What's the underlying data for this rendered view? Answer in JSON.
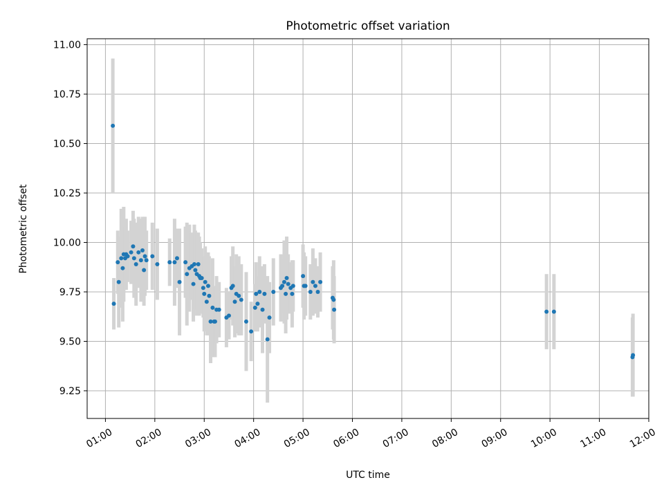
{
  "chart_data": {
    "type": "scatter",
    "title": "Photometric offset variation",
    "xlabel": "UTC time",
    "ylabel": "Photometric offset",
    "x_unit": "hours UTC",
    "xlim": [
      0.63,
      12.0
    ],
    "ylim": [
      9.11,
      11.03
    ],
    "x_ticks": [
      1,
      2,
      3,
      4,
      5,
      6,
      7,
      8,
      9,
      10,
      11,
      12
    ],
    "x_tick_labels": [
      "01:00",
      "02:00",
      "03:00",
      "04:00",
      "05:00",
      "06:00",
      "07:00",
      "08:00",
      "09:00",
      "10:00",
      "11:00",
      "12:00"
    ],
    "y_ticks": [
      9.25,
      9.5,
      9.75,
      10.0,
      10.25,
      10.5,
      10.75,
      11.0
    ],
    "y_tick_labels": [
      "9.25",
      "9.50",
      "9.75",
      "10.00",
      "10.25",
      "10.50",
      "10.75",
      "11.00"
    ],
    "grid": true,
    "colors": {
      "point": "#1f77b4",
      "errorbar": "#d3d3d3",
      "grid": "#b0b0b0",
      "axes": "#000000"
    },
    "series": [
      {
        "x": [
          1.15,
          1.17,
          1.25,
          1.27,
          1.32,
          1.35,
          1.37,
          1.4,
          1.42,
          1.45,
          1.52,
          1.56,
          1.58,
          1.62,
          1.67,
          1.72,
          1.75,
          1.78,
          1.8,
          1.83,
          1.95,
          2.05,
          2.3,
          2.4,
          2.45,
          2.5,
          2.62,
          2.65,
          2.7,
          2.75,
          2.78,
          2.8,
          2.82,
          2.85,
          2.88,
          2.9,
          2.92,
          2.95,
          2.98,
          3.0,
          3.02,
          3.05,
          3.08,
          3.1,
          3.13,
          3.17,
          3.2,
          3.22,
          3.25,
          3.3,
          3.45,
          3.5,
          3.55,
          3.58,
          3.62,
          3.65,
          3.7,
          3.75,
          3.85,
          3.95,
          4.03,
          4.05,
          4.08,
          4.12,
          4.18,
          4.22,
          4.28,
          4.32,
          4.4,
          4.55,
          4.58,
          4.62,
          4.65,
          4.67,
          4.7,
          4.75,
          4.78,
          4.8,
          5.0,
          5.02,
          5.05,
          5.15,
          5.2,
          5.25,
          5.3,
          5.35,
          5.6,
          5.62,
          5.63,
          9.93,
          10.08,
          11.67,
          11.68
        ],
        "y": [
          10.59,
          9.69,
          9.9,
          9.8,
          9.92,
          9.87,
          9.94,
          9.92,
          9.94,
          9.93,
          9.95,
          9.98,
          9.92,
          9.89,
          9.95,
          9.91,
          9.96,
          9.86,
          9.93,
          9.91,
          9.93,
          9.89,
          9.9,
          9.9,
          9.92,
          9.8,
          9.9,
          9.84,
          9.87,
          9.88,
          9.79,
          9.89,
          9.86,
          9.84,
          9.89,
          9.83,
          9.82,
          9.82,
          9.77,
          9.74,
          9.8,
          9.7,
          9.78,
          9.73,
          9.6,
          9.67,
          9.6,
          9.6,
          9.66,
          9.66,
          9.62,
          9.63,
          9.77,
          9.78,
          9.7,
          9.74,
          9.73,
          9.71,
          9.6,
          9.55,
          9.67,
          9.74,
          9.69,
          9.75,
          9.66,
          9.74,
          9.51,
          9.62,
          9.75,
          9.77,
          9.78,
          9.8,
          9.74,
          9.82,
          9.79,
          9.77,
          9.74,
          9.78,
          9.83,
          9.78,
          9.78,
          9.75,
          9.8,
          9.78,
          9.75,
          9.8,
          9.72,
          9.71,
          9.66,
          9.65,
          9.65,
          9.42,
          9.43
        ],
        "err": [
          0.34,
          0.13,
          0.16,
          0.23,
          0.25,
          0.27,
          0.24,
          0.16,
          0.18,
          0.13,
          0.16,
          0.18,
          0.2,
          0.21,
          0.18,
          0.21,
          0.17,
          0.18,
          0.2,
          0.15,
          0.17,
          0.18,
          0.12,
          0.22,
          0.15,
          0.27,
          0.18,
          0.26,
          0.22,
          0.17,
          0.19,
          0.2,
          0.2,
          0.21,
          0.16,
          0.2,
          0.18,
          0.15,
          0.15,
          0.19,
          0.18,
          0.17,
          0.17,
          0.2,
          0.21,
          0.25,
          0.15,
          0.18,
          0.17,
          0.14,
          0.15,
          0.12,
          0.16,
          0.2,
          0.18,
          0.2,
          0.2,
          0.18,
          0.25,
          0.15,
          0.12,
          0.16,
          0.14,
          0.18,
          0.22,
          0.15,
          0.32,
          0.18,
          0.17,
          0.17,
          0.14,
          0.21,
          0.2,
          0.21,
          0.15,
          0.13,
          0.17,
          0.13,
          0.16,
          0.17,
          0.15,
          0.14,
          0.17,
          0.14,
          0.13,
          0.15,
          0.16,
          0.2,
          0.17,
          0.19,
          0.19,
          0.2,
          0.21
        ]
      }
    ]
  }
}
